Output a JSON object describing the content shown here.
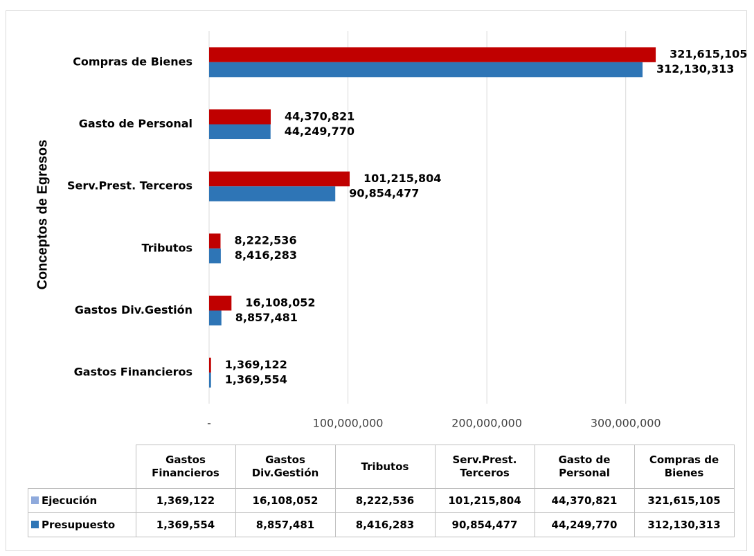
{
  "chart_data": {
    "type": "barh",
    "ylabel": "Conceptos de Egresos",
    "categories": [
      "Gastos Financieros",
      "Gastos Div.Gestión",
      "Tributos",
      "Serv.Prest. Terceros",
      "Gasto de Personal",
      "Compras de Bienes"
    ],
    "series": [
      {
        "name": "Ejecución",
        "color": "#c00000",
        "swatch_color": "#8faadc",
        "values": [
          1369122,
          16108052,
          8222536,
          101215804,
          44370821,
          321615105
        ],
        "value_labels": [
          "1,369,122",
          "16,108,052",
          "8,222,536",
          "101,215,804",
          "44,370,821",
          "321,615,105"
        ]
      },
      {
        "name": "Presupuesto",
        "color": "#2e75b6",
        "swatch_color": "#2e75b6",
        "values": [
          1369554,
          8857481,
          8416283,
          90854477,
          44249770,
          312130313
        ],
        "value_labels": [
          "1,369,554",
          "8,857,481",
          "8,416,283",
          "90,854,477",
          "44,249,770",
          "312,130,313"
        ]
      }
    ],
    "xlim": [
      0,
      350000000
    ],
    "xticks": [
      {
        "value": 0,
        "label": "-"
      },
      {
        "value": 100000000,
        "label": "100,000,000"
      },
      {
        "value": 200000000,
        "label": "200,000,000"
      },
      {
        "value": 300000000,
        "label": "300,000,000"
      }
    ],
    "grid": true
  }
}
